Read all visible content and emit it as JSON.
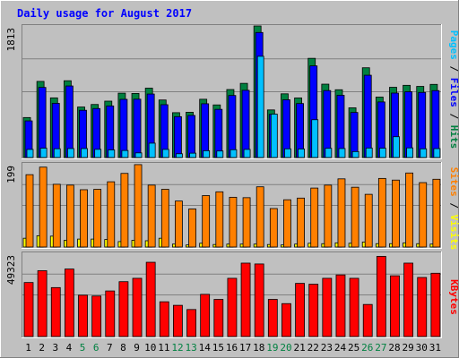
{
  "chart_data": [
    {
      "type": "bar",
      "title": "Daily usage for August 2017",
      "panel": "hits_files_pages",
      "categories": [
        "1",
        "2",
        "3",
        "4",
        "5",
        "6",
        "7",
        "8",
        "9",
        "10",
        "11",
        "12",
        "13",
        "14",
        "15",
        "16",
        "17",
        "18",
        "19",
        "20",
        "21",
        "22",
        "23",
        "24",
        "25",
        "26",
        "27",
        "28",
        "29",
        "30",
        "31"
      ],
      "weekend_days": [
        "5",
        "6",
        "12",
        "13",
        "19",
        "20",
        "26",
        "27"
      ],
      "y_max_label": "1813",
      "ylim": [
        0,
        1813
      ],
      "grid": true,
      "series": [
        {
          "name": "Hits",
          "color": "#008040",
          "values": [
            551,
            1049,
            822,
            1058,
            696,
            731,
            777,
            887,
            883,
            956,
            793,
            618,
            624,
            803,
            725,
            937,
            1022,
            1813,
            656,
            878,
            821,
            1367,
            1011,
            934,
            685,
            1237,
            833,
            968,
            995,
            980,
            1008
          ]
        },
        {
          "name": "Files",
          "color": "#0000ff",
          "values": [
            505,
            966,
            747,
            986,
            651,
            675,
            711,
            802,
            804,
            875,
            728,
            563,
            580,
            741,
            664,
            855,
            926,
            1723,
            595,
            796,
            744,
            1263,
            923,
            858,
            621,
            1134,
            766,
            888,
            907,
            897,
            922
          ]
        },
        {
          "name": "Pages",
          "color": "#00c0ff",
          "values": [
            112,
            129,
            121,
            124,
            124,
            113,
            105,
            97,
            64,
            198,
            112,
            52,
            60,
            94,
            90,
            108,
            112,
            1395,
            598,
            120,
            118,
            521,
            127,
            124,
            82,
            131,
            128,
            287,
            133,
            120,
            123
          ]
        }
      ]
    },
    {
      "type": "bar",
      "panel": "visits_sites",
      "categories": [
        "1",
        "2",
        "3",
        "4",
        "5",
        "6",
        "7",
        "8",
        "9",
        "10",
        "11",
        "12",
        "13",
        "14",
        "15",
        "16",
        "17",
        "18",
        "19",
        "20",
        "21",
        "22",
        "23",
        "24",
        "25",
        "26",
        "27",
        "28",
        "29",
        "30",
        "31"
      ],
      "y_max_label": "199",
      "ylim": [
        0,
        199
      ],
      "grid": true,
      "series": [
        {
          "name": "Visits",
          "color": "#ffff00",
          "values": [
            21,
            27,
            26,
            16,
            19,
            19,
            18,
            13,
            16,
            15,
            21,
            7,
            5,
            9,
            6,
            7,
            7,
            7,
            6,
            5,
            7,
            9,
            8,
            10,
            9,
            12,
            8,
            8,
            10,
            8,
            7
          ]
        },
        {
          "name": "Sites",
          "color": "#ff8000",
          "values": [
            173,
            191,
            150,
            148,
            137,
            138,
            156,
            176,
            197,
            148,
            138,
            110,
            91,
            123,
            132,
            119,
            118,
            144,
            92,
            113,
            117,
            141,
            148,
            163,
            143,
            126,
            164,
            160,
            177,
            154,
            162
          ]
        }
      ]
    },
    {
      "type": "bar",
      "panel": "kbytes",
      "categories": [
        "1",
        "2",
        "3",
        "4",
        "5",
        "6",
        "7",
        "8",
        "9",
        "10",
        "11",
        "12",
        "13",
        "14",
        "15",
        "16",
        "17",
        "18",
        "19",
        "20",
        "21",
        "22",
        "23",
        "24",
        "25",
        "26",
        "27",
        "28",
        "29",
        "30",
        "31"
      ],
      "y_max_label": "49323",
      "ylim": [
        0,
        49323
      ],
      "grid": true,
      "series": [
        {
          "name": "KBytes",
          "color": "#ff0000",
          "values": [
            32000,
            39000,
            29000,
            40000,
            24500,
            24000,
            27000,
            32500,
            34500,
            44000,
            20600,
            18500,
            16000,
            25000,
            22000,
            34500,
            43500,
            43000,
            22000,
            19500,
            31500,
            31000,
            34500,
            36500,
            34500,
            19000,
            47500,
            36000,
            43500,
            35000,
            37500
          ]
        }
      ]
    }
  ],
  "legend": {
    "pages": "Pages",
    "files": "Files",
    "hits": "Hits",
    "sites": "Sites",
    "visits": "Visits",
    "kbytes": "KBytes",
    "separator": " / "
  },
  "colors": {
    "background": "#c0c0c0",
    "panel": "#c0c0c0",
    "title": "#0000ff",
    "weekday_label": "#000000",
    "weekend_label": "#008040",
    "bevel_light": "#ffffff",
    "bevel_dark": "#808080"
  }
}
